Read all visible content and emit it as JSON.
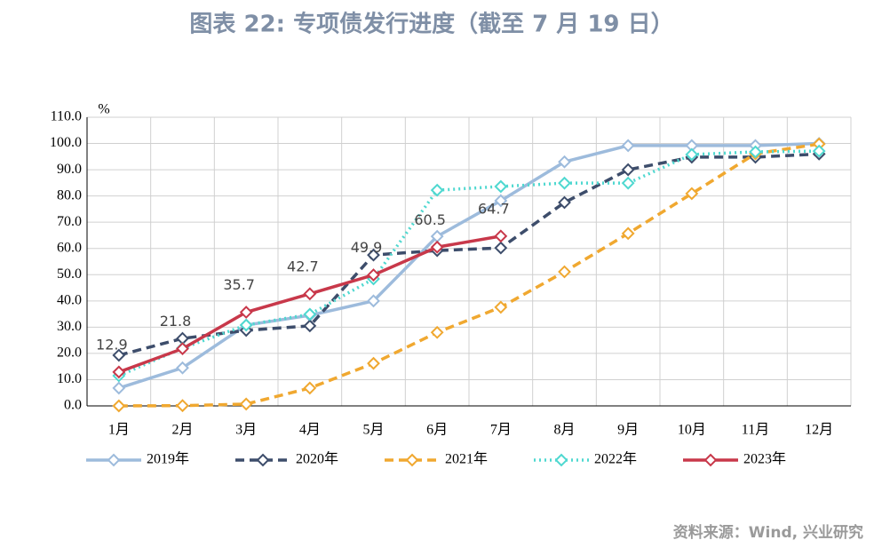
{
  "chart_data": {
    "type": "line",
    "title": "图表 22: 专项债发行进度（截至 7 月 19 日）",
    "y_unit": "%",
    "source": "资料来源：Wind, 兴业研究",
    "categories": [
      "1月",
      "2月",
      "3月",
      "4月",
      "5月",
      "6月",
      "7月",
      "8月",
      "9月",
      "10月",
      "11月",
      "12月"
    ],
    "series": [
      {
        "name": "2019年",
        "color": "#9dbbdc",
        "dash": "solid",
        "values": [
          6.8,
          14.5,
          30.8,
          34.5,
          40,
          64.6,
          78.2,
          93,
          99.2,
          99.2,
          99.2,
          100
        ]
      },
      {
        "name": "2020年",
        "color": "#3d4d6b",
        "dash": "dashed",
        "values": [
          19.3,
          25.7,
          28.8,
          30.5,
          57.5,
          59.2,
          60.2,
          77.5,
          90,
          94.8,
          94.8,
          96
        ]
      },
      {
        "name": "2021年",
        "color": "#f0a830",
        "dash": "dashed",
        "values": [
          0,
          0.1,
          0.7,
          6.8,
          16.2,
          28,
          37.6,
          51.1,
          65.7,
          80.9,
          96.1,
          99.8
        ]
      },
      {
        "name": "2022年",
        "color": "#4fd8d0",
        "dash": "dotted",
        "values": [
          11.5,
          22,
          30.8,
          34.9,
          48.4,
          82.2,
          83.6,
          84.9,
          84.9,
          95.8,
          96.8,
          97.1
        ]
      },
      {
        "name": "2023年",
        "color": "#c8384a",
        "dash": "solid",
        "data_labels": true,
        "values": [
          12.9,
          21.8,
          35.7,
          42.7,
          49.9,
          60.5,
          64.7,
          null,
          null,
          null,
          null,
          null
        ]
      }
    ],
    "ylim": [
      0,
      110
    ],
    "yticks": [
      {
        "value": 0,
        "label": "0.0"
      },
      {
        "value": 10,
        "label": "10.0"
      },
      {
        "value": 20,
        "label": "20.0"
      },
      {
        "value": 30,
        "label": "30.0"
      },
      {
        "value": 40,
        "label": "40.0"
      },
      {
        "value": 50,
        "label": "50.0"
      },
      {
        "value": 60,
        "label": "60.0"
      },
      {
        "value": 70,
        "label": "70.0"
      },
      {
        "value": 80,
        "label": "80.0"
      },
      {
        "value": 90,
        "label": "90.0"
      },
      {
        "value": 100,
        "label": "100.0"
      },
      {
        "value": 110,
        "label": "110.0"
      }
    ],
    "grid": true
  }
}
